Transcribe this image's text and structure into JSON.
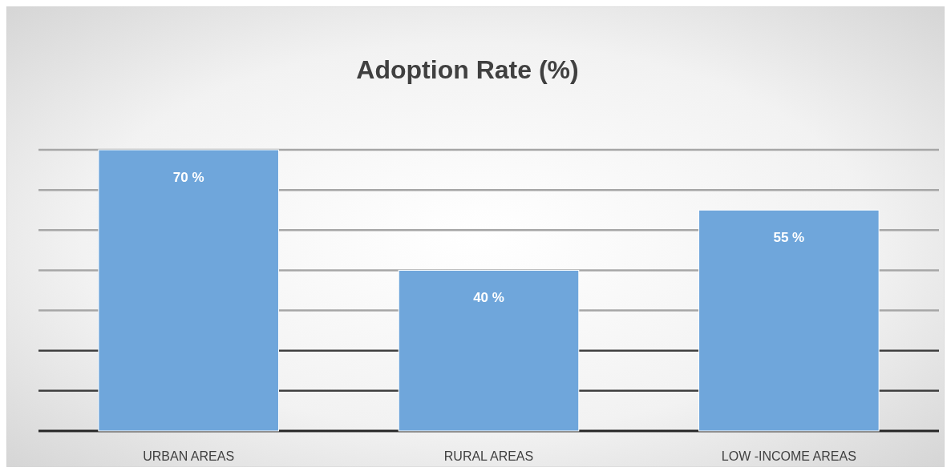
{
  "chart_data": {
    "type": "bar",
    "title": "Adoption Rate (%)",
    "categories": [
      "URBAN AREAS",
      "RURAL AREAS",
      "LOW -INCOME AREAS"
    ],
    "values": [
      70,
      40,
      55
    ],
    "value_labels": [
      "70 %",
      "40 %",
      "55 %"
    ],
    "color": "#6fa6db",
    "ylim": [
      0,
      70
    ],
    "yticks": [
      {
        "value": 0,
        "label": null
      },
      {
        "value": 10,
        "label": null
      },
      {
        "value": 20,
        "label": null
      },
      {
        "value": 30,
        "label": null
      },
      {
        "value": 40,
        "label": null
      },
      {
        "value": 50,
        "label": null
      },
      {
        "value": 60,
        "label": null
      },
      {
        "value": 70,
        "label": null
      }
    ],
    "grid": "y"
  }
}
